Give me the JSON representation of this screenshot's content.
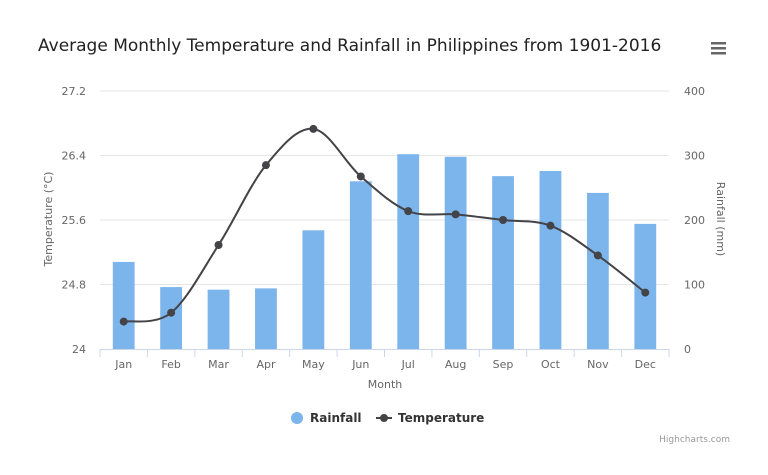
{
  "chart_data": {
    "type": "bar",
    "title": "Average Monthly Temperature and Rainfall in Philippines from 1901-2016",
    "xlabel": "Month",
    "categories": [
      "Jan",
      "Feb",
      "Mar",
      "Apr",
      "May",
      "Jun",
      "Jul",
      "Aug",
      "Sep",
      "Oct",
      "Nov",
      "Dec"
    ],
    "y_axes": [
      {
        "label": "Temperature (°C)",
        "side": "left",
        "min": 24,
        "max": 27.2,
        "ticks": [
          "24",
          "24.8",
          "25.6",
          "26.4",
          "27.2"
        ]
      },
      {
        "label": "Rainfall (mm)",
        "side": "right",
        "min": 0,
        "max": 400,
        "ticks": [
          "0",
          "100",
          "200",
          "300",
          "400"
        ]
      }
    ],
    "series": [
      {
        "name": "Rainfall",
        "type": "bar",
        "axis": "right",
        "color": "#7cb5ec",
        "values": [
          135,
          96,
          92,
          94,
          184,
          260,
          302,
          298,
          268,
          276,
          242,
          194
        ]
      },
      {
        "name": "Temperature",
        "type": "spline",
        "axis": "left",
        "color": "#434348",
        "values": [
          24.34,
          24.45,
          25.29,
          26.28,
          26.73,
          26.14,
          25.71,
          25.67,
          25.6,
          25.53,
          25.16,
          24.7
        ]
      }
    ],
    "grid": true,
    "legend_position": "bottom-center"
  },
  "menu_icon": "hamburger-menu-icon",
  "credit": "Highcharts.com"
}
